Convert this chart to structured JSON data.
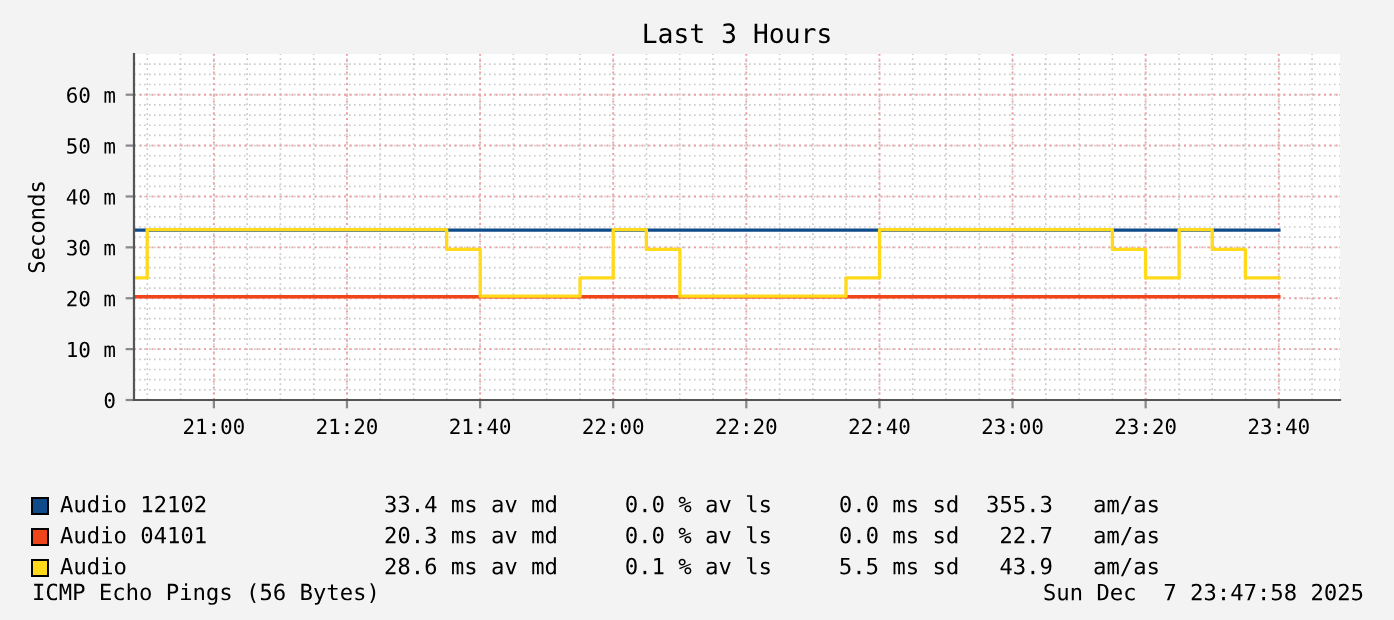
{
  "chart_data": {
    "type": "step",
    "title": "Last 3 Hours",
    "ylabel": "Seconds",
    "xlim": [
      20.8,
      23.82
    ],
    "xticks": [
      {
        "value": 21,
        "label": "21:00"
      },
      {
        "value": 21.3333,
        "label": "21:20"
      },
      {
        "value": 21.6667,
        "label": "21:40"
      },
      {
        "value": 22,
        "label": "22:00"
      },
      {
        "value": 22.3333,
        "label": "22:20"
      },
      {
        "value": 22.6667,
        "label": "22:40"
      },
      {
        "value": 23,
        "label": "23:00"
      },
      {
        "value": 23.3333,
        "label": "23:20"
      },
      {
        "value": 23.6667,
        "label": "23:40"
      }
    ],
    "ylim": [
      0,
      68
    ],
    "yticks": [
      0,
      {
        "value": 10,
        "label": "10 m"
      },
      {
        "value": 20,
        "label": "20 m"
      },
      {
        "value": 30,
        "label": "30 m"
      },
      {
        "value": 40,
        "label": "40 m"
      },
      {
        "value": 50,
        "label": "50 m"
      },
      {
        "value": 60,
        "label": "60 m"
      }
    ],
    "grid": true,
    "legend": "bottom",
    "series": [
      {
        "name": "Audio 12102",
        "color": "#0f4a8a",
        "x": [
          20.8,
          23.667
        ],
        "values": [
          33.4,
          33.4
        ]
      },
      {
        "name": "Audio 04101",
        "color": "#f0451a",
        "x": [
          20.8,
          23.667
        ],
        "values": [
          20.3,
          20.3
        ]
      },
      {
        "name": "Audio",
        "color": "#ffd91a",
        "x": [
          20.8,
          20.833,
          21.583,
          21.667,
          21.917,
          22.0,
          22.083,
          22.167,
          22.583,
          22.667,
          23.25,
          23.333,
          23.417,
          23.5,
          23.583,
          23.667
        ],
        "values": [
          24,
          33.5,
          29.6,
          20.4,
          24,
          33.5,
          29.6,
          20.4,
          24,
          33.5,
          29.6,
          24,
          33.5,
          29.6,
          24,
          24
        ]
      }
    ],
    "annotations": [
      "33.4 ms av md     0.0 % av ls     0.0 ms sd  355.3   am/as",
      "20.3 ms av md     0.0 % av ls     0.0 ms sd   22.7   am/as",
      "28.6 ms av md     0.1 % av ls     5.5 ms sd   43.9   am/as",
      "ICMP Echo Pings (56 Bytes)",
      "Sun Dec  7 23:47:58 2025"
    ]
  }
}
